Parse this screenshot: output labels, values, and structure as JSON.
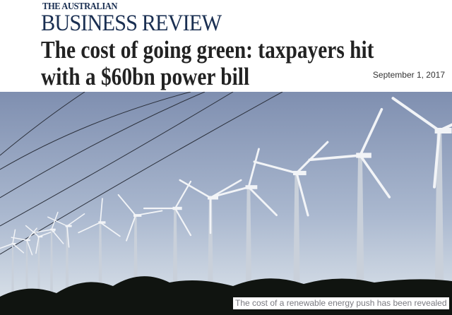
{
  "masthead": {
    "line1": "THE AUSTRALIAN",
    "line2": "BUSINESS REVIEW"
  },
  "article": {
    "headline_line1": "The cost of going green: taxpayers hit",
    "headline_line2": "with a $60bn power bill",
    "date": "September 1, 2017"
  },
  "photo": {
    "subject": "wind-turbines",
    "caption": "The cost of a renewable energy push has been revealed",
    "colors": {
      "sky_top": "#7f8fb0",
      "sky_bottom": "#d6dfe8",
      "turbine": "#f2f4f7",
      "foliage": "#101410"
    }
  }
}
